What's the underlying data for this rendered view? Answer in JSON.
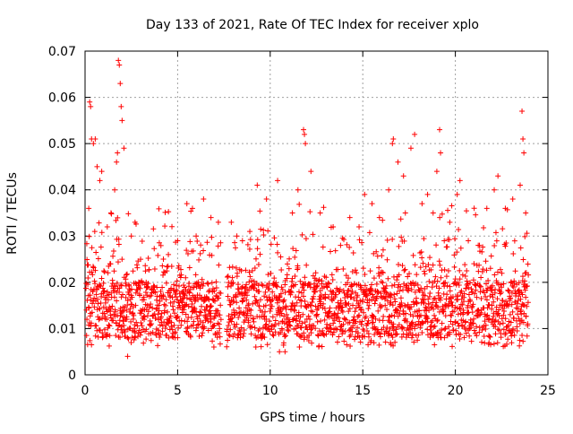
{
  "chart_data": {
    "type": "scatter",
    "title": "Day 133 of 2021, Rate Of TEC Index for receiver xplo",
    "xlabel": "GPS time / hours",
    "ylabel": "ROTI / TECUs",
    "xlim": [
      0,
      25
    ],
    "ylim": [
      0,
      0.07
    ],
    "xticks": [
      0,
      5,
      10,
      15,
      20,
      25
    ],
    "xtick_labels": [
      "0",
      "5",
      "10",
      "15",
      "20",
      "25"
    ],
    "yticks": [
      0,
      0.01,
      0.02,
      0.03,
      0.04,
      0.05,
      0.06,
      0.07
    ],
    "ytick_labels": [
      "0",
      "0.01",
      "0.02",
      "0.03",
      "0.04",
      "0.05",
      "0.06",
      "0.07"
    ],
    "grid": true,
    "marker": "plus",
    "color": "#ff0000",
    "series": [
      {
        "data_gap_hours": [
          7.35,
          7.65
        ],
        "points": [
          [
            0.1,
            0.012
          ],
          [
            0.2,
            0.036
          ],
          [
            0.25,
            0.059
          ],
          [
            0.3,
            0.058
          ],
          [
            0.35,
            0.051
          ],
          [
            0.45,
            0.05
          ],
          [
            0.55,
            0.051
          ],
          [
            0.65,
            0.045
          ],
          [
            0.8,
            0.042
          ],
          [
            0.9,
            0.044
          ],
          [
            1.0,
            0.018
          ],
          [
            1.2,
            0.032
          ],
          [
            1.4,
            0.035
          ],
          [
            1.6,
            0.04
          ],
          [
            1.7,
            0.046
          ],
          [
            1.75,
            0.048
          ],
          [
            1.8,
            0.068
          ],
          [
            1.85,
            0.067
          ],
          [
            1.9,
            0.063
          ],
          [
            1.95,
            0.058
          ],
          [
            2.0,
            0.055
          ],
          [
            2.1,
            0.049
          ],
          [
            2.2,
            0.012
          ],
          [
            2.3,
            0.004
          ],
          [
            2.5,
            0.03
          ],
          [
            2.7,
            0.033
          ],
          [
            3.0,
            0.025
          ],
          [
            3.3,
            0.02
          ],
          [
            3.7,
            0.018
          ],
          [
            4.0,
            0.015
          ],
          [
            4.5,
            0.026
          ],
          [
            5.0,
            0.029
          ],
          [
            5.5,
            0.037
          ],
          [
            5.8,
            0.036
          ],
          [
            6.0,
            0.03
          ],
          [
            6.4,
            0.038
          ],
          [
            6.8,
            0.034
          ],
          [
            7.2,
            0.033
          ],
          [
            7.9,
            0.033
          ],
          [
            8.2,
            0.03
          ],
          [
            8.5,
            0.029
          ],
          [
            8.9,
            0.031
          ],
          [
            9.3,
            0.041
          ],
          [
            9.8,
            0.038
          ],
          [
            10.4,
            0.042
          ],
          [
            10.5,
            0.005
          ],
          [
            10.8,
            0.005
          ],
          [
            11.2,
            0.035
          ],
          [
            11.5,
            0.04
          ],
          [
            11.8,
            0.053
          ],
          [
            11.85,
            0.052
          ],
          [
            11.9,
            0.05
          ],
          [
            12.2,
            0.044
          ],
          [
            12.7,
            0.035
          ],
          [
            13.4,
            0.032
          ],
          [
            13.8,
            0.028
          ],
          [
            14.3,
            0.034
          ],
          [
            14.8,
            0.032
          ],
          [
            15.1,
            0.039
          ],
          [
            15.5,
            0.037
          ],
          [
            15.9,
            0.034
          ],
          [
            16.1,
            0.027
          ],
          [
            16.4,
            0.04
          ],
          [
            16.6,
            0.05
          ],
          [
            16.65,
            0.051
          ],
          [
            16.9,
            0.046
          ],
          [
            17.2,
            0.043
          ],
          [
            17.3,
            0.035
          ],
          [
            17.6,
            0.049
          ],
          [
            17.8,
            0.052
          ],
          [
            18.2,
            0.037
          ],
          [
            18.5,
            0.039
          ],
          [
            18.8,
            0.035
          ],
          [
            19.0,
            0.044
          ],
          [
            19.15,
            0.053
          ],
          [
            19.2,
            0.048
          ],
          [
            19.4,
            0.029
          ],
          [
            19.7,
            0.033
          ],
          [
            20.1,
            0.039
          ],
          [
            20.25,
            0.042
          ],
          [
            20.7,
            0.029
          ],
          [
            21.3,
            0.028
          ],
          [
            21.7,
            0.036
          ],
          [
            22.1,
            0.04
          ],
          [
            22.3,
            0.043
          ],
          [
            22.7,
            0.036
          ],
          [
            23.1,
            0.038
          ],
          [
            23.5,
            0.041
          ],
          [
            23.6,
            0.057
          ],
          [
            23.65,
            0.051
          ],
          [
            23.7,
            0.048
          ],
          [
            23.8,
            0.035
          ]
        ]
      }
    ]
  }
}
